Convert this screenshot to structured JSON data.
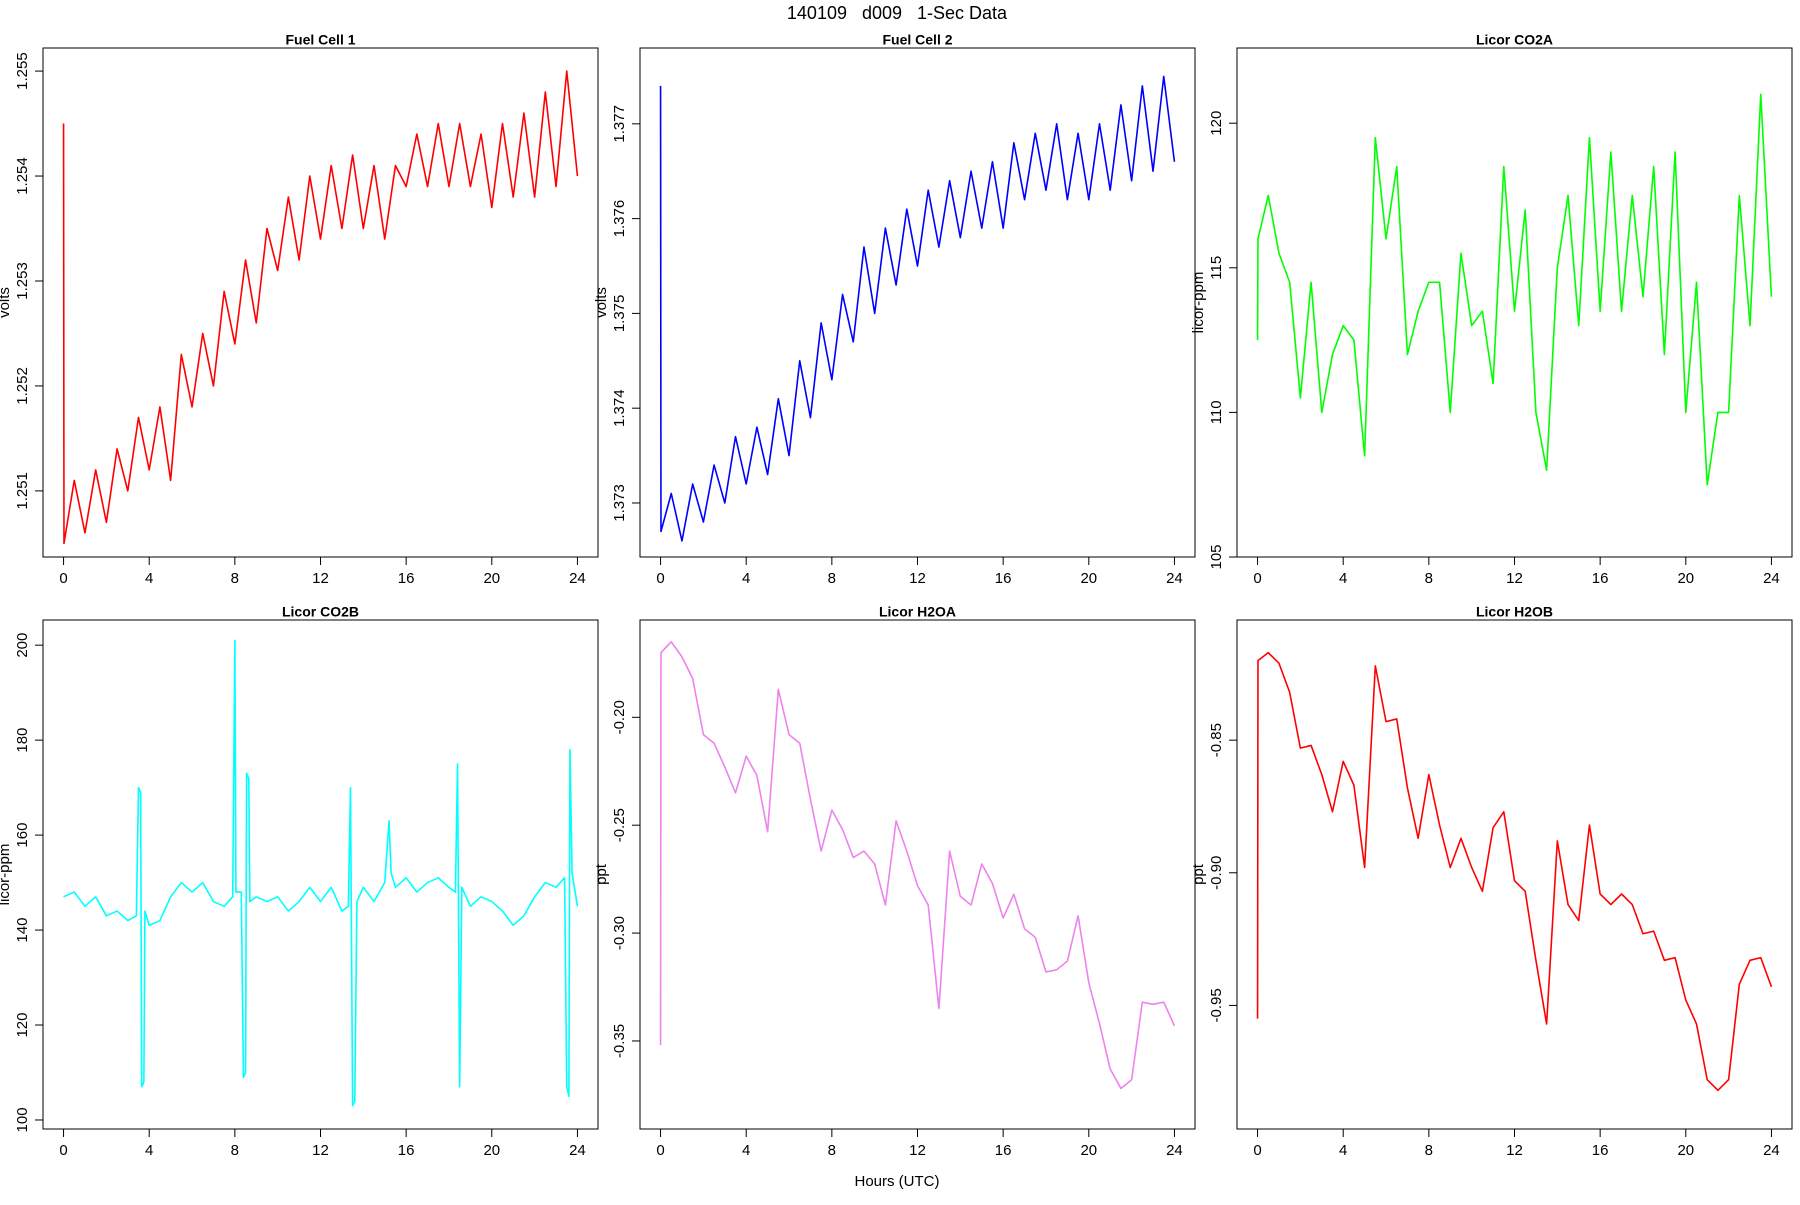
{
  "title": "140109   d009   1-Sec Data",
  "x_label": "Hours (UTC)",
  "chart_data": [
    {
      "type": "line",
      "title": "Fuel Cell 1",
      "y_label": "volts",
      "color": "#ff0000",
      "xlim": [
        -0.96,
        24.96
      ],
      "xticks": [
        0,
        4,
        8,
        12,
        16,
        20,
        24
      ],
      "ylim": [
        1.25037,
        1.25522
      ],
      "yticks": [
        1.251,
        1.252,
        1.253,
        1.254,
        1.255
      ],
      "x": [
        0,
        0.02,
        0.5,
        1,
        1.5,
        2,
        2.5,
        3,
        3.5,
        4,
        4.5,
        5,
        5.5,
        6,
        6.5,
        7,
        7.5,
        8,
        8.5,
        9,
        9.5,
        10,
        10.5,
        11,
        11.5,
        12,
        12.5,
        13,
        13.5,
        14,
        14.5,
        15,
        15.5,
        16,
        16.5,
        17,
        17.5,
        18,
        18.5,
        19,
        19.5,
        20,
        20.5,
        21,
        21.5,
        22,
        22.5,
        23,
        23.5,
        24
      ],
      "values": [
        1.2545,
        1.2505,
        1.2511,
        1.2506,
        1.2512,
        1.2507,
        1.2514,
        1.251,
        1.2517,
        1.2512,
        1.2518,
        1.2511,
        1.2523,
        1.2518,
        1.2525,
        1.252,
        1.2529,
        1.2524,
        1.2532,
        1.2526,
        1.2535,
        1.2531,
        1.2538,
        1.2532,
        1.254,
        1.2534,
        1.2541,
        1.2535,
        1.2542,
        1.2535,
        1.2541,
        1.2534,
        1.2541,
        1.2539,
        1.2544,
        1.2539,
        1.2545,
        1.2539,
        1.2545,
        1.2539,
        1.2544,
        1.2537,
        1.2545,
        1.2538,
        1.2546,
        1.2538,
        1.2548,
        1.2539,
        1.255,
        1.254
      ]
    },
    {
      "type": "line",
      "title": "Fuel Cell 2",
      "y_label": "volts",
      "color": "#0000ff",
      "xlim": [
        -0.96,
        24.96
      ],
      "xticks": [
        0,
        4,
        8,
        12,
        16,
        20,
        24
      ],
      "ylim": [
        1.37243,
        1.3778
      ],
      "yticks": [
        1.373,
        1.374,
        1.375,
        1.376,
        1.377
      ],
      "x": [
        0,
        0.02,
        0.5,
        1,
        1.5,
        2,
        2.5,
        3,
        3.5,
        4,
        4.5,
        5,
        5.5,
        6,
        6.5,
        7,
        7.5,
        8,
        8.5,
        9,
        9.5,
        10,
        10.5,
        11,
        11.5,
        12,
        12.5,
        13,
        13.5,
        14,
        14.5,
        15,
        15.5,
        16,
        16.5,
        17,
        17.5,
        18,
        18.5,
        19,
        19.5,
        20,
        20.5,
        21,
        21.5,
        22,
        22.5,
        23,
        23.5,
        24
      ],
      "values": [
        1.3774,
        1.3727,
        1.3731,
        1.3726,
        1.3732,
        1.3728,
        1.3734,
        1.373,
        1.3737,
        1.3732,
        1.3738,
        1.3733,
        1.3741,
        1.3735,
        1.3745,
        1.3739,
        1.3749,
        1.3743,
        1.3752,
        1.3747,
        1.3757,
        1.375,
        1.3759,
        1.3753,
        1.3761,
        1.3755,
        1.3763,
        1.3757,
        1.3764,
        1.3758,
        1.3765,
        1.3759,
        1.3766,
        1.3759,
        1.3768,
        1.3762,
        1.3769,
        1.3763,
        1.377,
        1.3762,
        1.3769,
        1.3762,
        1.377,
        1.3763,
        1.3772,
        1.3764,
        1.3774,
        1.3765,
        1.3775,
        1.3766
      ]
    },
    {
      "type": "line",
      "title": "Licor CO2A",
      "y_label": "licor-ppm",
      "color": "#00ff00",
      "xlim": [
        -0.96,
        24.96
      ],
      "xticks": [
        0,
        4,
        8,
        12,
        16,
        20,
        24
      ],
      "ylim": [
        105.0,
        122.6
      ],
      "yticks": [
        105,
        110,
        115,
        120
      ],
      "x": [
        0,
        0.02,
        0.5,
        1,
        1.5,
        2,
        2.5,
        3,
        3.5,
        4,
        4.5,
        5,
        5.5,
        6,
        6.5,
        7,
        7.5,
        8,
        8.5,
        9,
        9.5,
        10,
        10.5,
        11,
        11.5,
        12,
        12.5,
        13,
        13.5,
        14,
        14.5,
        15,
        15.5,
        16,
        16.5,
        17,
        17.5,
        18,
        18.5,
        19,
        19.5,
        20,
        20.5,
        21,
        21.5,
        22,
        22.5,
        23,
        23.5,
        24
      ],
      "values": [
        112.5,
        116,
        117.5,
        115.5,
        114.5,
        110.5,
        114.5,
        110,
        112,
        113,
        112.5,
        108.5,
        119.5,
        116,
        118.5,
        112,
        113.5,
        114.5,
        114.5,
        110,
        115.5,
        113,
        113.5,
        111,
        118.5,
        113.5,
        117,
        110,
        108,
        115,
        117.5,
        113,
        119.5,
        113.5,
        119,
        113.5,
        117.5,
        114,
        118.5,
        112,
        119,
        110,
        114.5,
        107.5,
        110,
        110,
        117.5,
        113,
        121,
        114
      ]
    },
    {
      "type": "line",
      "title": "Licor CO2B",
      "y_label": "licor-ppm",
      "color": "#00ffff",
      "xlim": [
        -0.96,
        24.96
      ],
      "xticks": [
        0,
        4,
        8,
        12,
        16,
        20,
        24
      ],
      "ylim": [
        98.1,
        205.3
      ],
      "yticks": [
        100,
        120,
        140,
        160,
        180,
        200
      ],
      "x": [
        0,
        0.5,
        1,
        1.5,
        2,
        2.5,
        3,
        3.4,
        3.5,
        3.6,
        3.65,
        3.75,
        3.8,
        4,
        4.5,
        5,
        5.5,
        6,
        6.5,
        7,
        7.5,
        7.9,
        8,
        8.05,
        8.3,
        8.4,
        8.5,
        8.55,
        8.65,
        8.7,
        9,
        9.5,
        10,
        10.5,
        11,
        11.5,
        12,
        12.5,
        13,
        13.3,
        13.4,
        13.5,
        13.6,
        13.7,
        14,
        14.5,
        15,
        15.2,
        15.3,
        15.5,
        16,
        16.5,
        17,
        17.5,
        18,
        18.3,
        18.4,
        18.5,
        18.6,
        19,
        19.5,
        20,
        20.5,
        21,
        21.5,
        22,
        22.5,
        23,
        23.4,
        23.5,
        23.6,
        23.65,
        23.75,
        24
      ],
      "values": [
        147,
        148,
        145,
        147,
        143,
        144,
        142,
        143,
        170,
        169,
        107,
        108,
        144,
        141,
        142,
        147,
        150,
        148,
        150,
        146,
        145,
        147,
        201,
        148,
        148,
        109,
        110,
        173,
        172,
        146,
        147,
        146,
        147,
        144,
        146,
        149,
        146,
        149,
        144,
        145,
        170,
        103,
        104,
        146,
        149,
        146,
        150,
        163,
        152,
        149,
        151,
        148,
        150,
        151,
        149,
        148,
        175,
        107,
        149,
        145,
        147,
        146,
        144,
        141,
        143,
        147,
        150,
        149,
        151,
        107,
        105,
        178,
        152,
        145
      ]
    },
    {
      "type": "line",
      "title": "Licor H2OA",
      "y_label": "ppt",
      "color": "#ee82ee",
      "xlim": [
        -0.96,
        24.96
      ],
      "xticks": [
        0,
        4,
        8,
        12,
        16,
        20,
        24
      ],
      "ylim": [
        -0.3908,
        -0.1549
      ],
      "yticks": [
        {
          "value": -0.2,
          "label": "-0.20"
        },
        -0.25,
        {
          "value": -0.3,
          "label": "-0.30"
        },
        -0.35
      ],
      "x": [
        0,
        0.02,
        0.5,
        1,
        1.5,
        2,
        2.5,
        3,
        3.5,
        4,
        4.5,
        5,
        5.5,
        6,
        6.5,
        7,
        7.5,
        8,
        8.5,
        9,
        9.5,
        10,
        10.5,
        11,
        11.5,
        12,
        12.5,
        13,
        13.5,
        14,
        14.5,
        15,
        15.5,
        16,
        16.5,
        17,
        17.5,
        18,
        18.5,
        19,
        19.5,
        20,
        20.5,
        21,
        21.5,
        22,
        22.5,
        23,
        23.5,
        24
      ],
      "values": [
        -0.352,
        -0.17,
        -0.165,
        -0.172,
        -0.182,
        -0.208,
        -0.212,
        -0.223,
        -0.235,
        -0.218,
        -0.227,
        -0.253,
        -0.187,
        -0.208,
        -0.212,
        -0.238,
        -0.262,
        -0.243,
        -0.252,
        -0.265,
        -0.262,
        -0.268,
        -0.287,
        -0.248,
        -0.262,
        -0.278,
        -0.287,
        -0.335,
        -0.262,
        -0.283,
        -0.287,
        -0.268,
        -0.277,
        -0.293,
        -0.282,
        -0.298,
        -0.302,
        -0.318,
        -0.317,
        -0.313,
        -0.292,
        -0.323,
        -0.342,
        -0.363,
        -0.372,
        -0.368,
        -0.332,
        -0.333,
        -0.332,
        -0.343
      ]
    },
    {
      "type": "line",
      "title": "Licor H2OB",
      "y_label": "ppt",
      "color": "#ff0000",
      "xlim": [
        -0.96,
        24.96
      ],
      "xticks": [
        0,
        4,
        8,
        12,
        16,
        20,
        24
      ],
      "ylim": [
        -0.9966,
        -0.8047
      ],
      "yticks": [
        -0.85,
        {
          "value": -0.9,
          "label": "-0.90"
        },
        -0.95
      ],
      "x": [
        0,
        0.02,
        0.5,
        1,
        1.5,
        2,
        2.5,
        3,
        3.5,
        4,
        4.5,
        5,
        5.5,
        6,
        6.5,
        7,
        7.5,
        8,
        8.5,
        9,
        9.5,
        10,
        10.5,
        11,
        11.5,
        12,
        12.5,
        13,
        13.5,
        14,
        14.5,
        15,
        15.5,
        16,
        16.5,
        17,
        17.5,
        18,
        18.5,
        19,
        19.5,
        20,
        20.5,
        21,
        21.5,
        22,
        22.5,
        23,
        23.5,
        24
      ],
      "values": [
        -0.955,
        -0.82,
        -0.817,
        -0.821,
        -0.832,
        -0.853,
        -0.852,
        -0.863,
        -0.877,
        -0.858,
        -0.867,
        -0.898,
        -0.822,
        -0.843,
        -0.842,
        -0.868,
        -0.887,
        -0.863,
        -0.882,
        -0.898,
        -0.887,
        -0.898,
        -0.907,
        -0.883,
        -0.877,
        -0.903,
        -0.907,
        -0.933,
        -0.957,
        -0.888,
        -0.912,
        -0.918,
        -0.882,
        -0.908,
        -0.912,
        -0.908,
        -0.912,
        -0.923,
        -0.922,
        -0.933,
        -0.932,
        -0.948,
        -0.957,
        -0.978,
        -0.982,
        -0.978,
        -0.942,
        -0.933,
        -0.932,
        -0.943
      ]
    }
  ]
}
